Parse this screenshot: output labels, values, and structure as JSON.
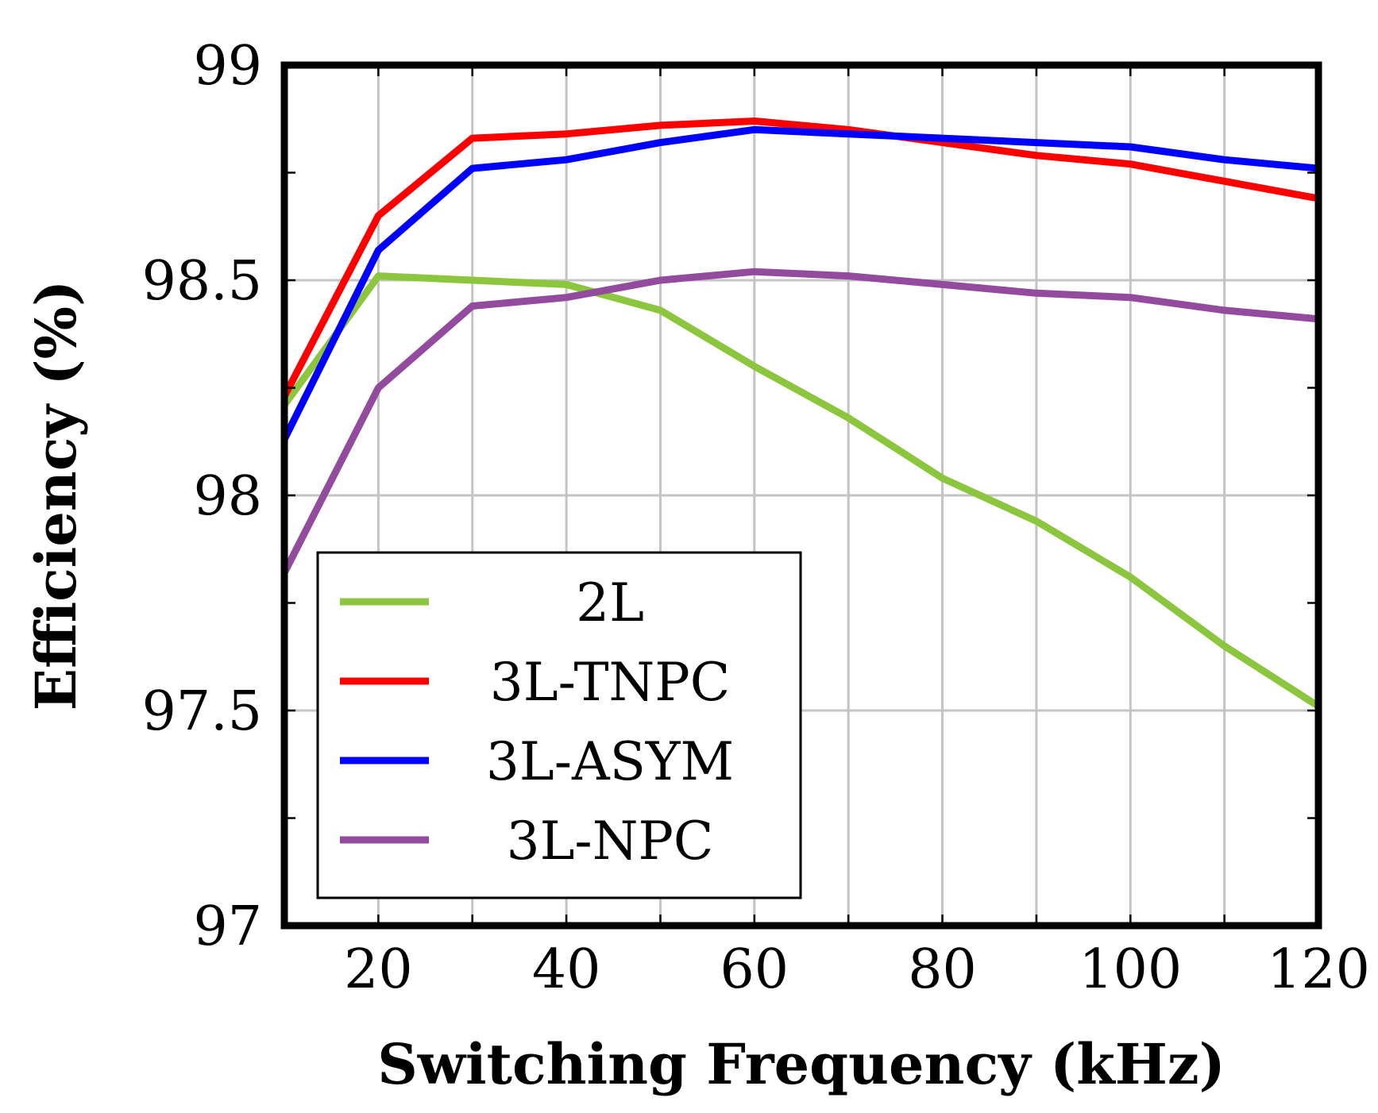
{
  "chart_data": {
    "type": "line",
    "title": "",
    "xlabel": "Switching Frequency (kHz)",
    "ylabel": "Efficiency (%)",
    "xlim": [
      10,
      120
    ],
    "ylim": [
      97,
      99
    ],
    "xticks": [
      20,
      40,
      60,
      80,
      100,
      120
    ],
    "xtick_labels": [
      "20",
      "40",
      "60",
      "80",
      "100",
      "120"
    ],
    "xminor": [
      30,
      50,
      70,
      90,
      110
    ],
    "yticks": [
      97,
      97.5,
      98,
      98.5,
      99
    ],
    "ytick_labels": [
      "97",
      "97.5",
      "98",
      "98.5",
      "99"
    ],
    "yminor": [
      97.25,
      97.75,
      98.25,
      98.75
    ],
    "grid": true,
    "legend_position": "bottom-left",
    "x": [
      10,
      20,
      30,
      40,
      50,
      60,
      70,
      80,
      90,
      100,
      110,
      120
    ],
    "series": [
      {
        "name": "2L",
        "color": "#8CC63F",
        "values": [
          98.21,
          98.51,
          98.5,
          98.49,
          98.43,
          98.3,
          98.18,
          98.04,
          97.94,
          97.81,
          97.65,
          97.51
        ]
      },
      {
        "name": "3L-TNPC",
        "color": "#FF0000",
        "values": [
          98.23,
          98.65,
          98.83,
          98.84,
          98.86,
          98.87,
          98.85,
          98.82,
          98.79,
          98.77,
          98.73,
          98.69
        ]
      },
      {
        "name": "3L-ASYM",
        "color": "#0000FF",
        "values": [
          98.13,
          98.57,
          98.76,
          98.78,
          98.82,
          98.85,
          98.84,
          98.83,
          98.82,
          98.81,
          98.78,
          98.76
        ]
      },
      {
        "name": "3L-NPC",
        "color": "#934B9E",
        "values": [
          97.82,
          98.25,
          98.44,
          98.46,
          98.5,
          98.52,
          98.51,
          98.49,
          98.47,
          98.46,
          98.43,
          98.41
        ]
      }
    ]
  }
}
